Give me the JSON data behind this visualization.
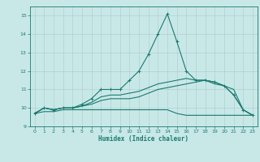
{
  "xlabel": "Humidex (Indice chaleur)",
  "x": [
    0,
    1,
    2,
    3,
    4,
    5,
    6,
    7,
    8,
    9,
    10,
    11,
    12,
    13,
    14,
    15,
    16,
    17,
    18,
    19,
    20,
    21,
    22,
    23
  ],
  "line1": [
    9.7,
    10.0,
    9.9,
    10.0,
    10.0,
    10.2,
    10.5,
    11.0,
    11.0,
    11.0,
    11.5,
    12.0,
    12.9,
    14.0,
    15.1,
    13.6,
    12.0,
    11.5,
    11.5,
    11.4,
    11.2,
    10.7,
    9.9,
    9.6
  ],
  "line2": [
    9.7,
    10.0,
    9.9,
    10.0,
    10.0,
    10.1,
    10.2,
    10.4,
    10.5,
    10.5,
    10.5,
    10.6,
    10.8,
    11.0,
    11.1,
    11.2,
    11.3,
    11.4,
    11.5,
    11.3,
    11.2,
    11.0,
    9.9,
    9.6
  ],
  "line3": [
    9.7,
    9.8,
    9.8,
    9.9,
    9.9,
    9.9,
    9.9,
    9.9,
    9.9,
    9.9,
    9.9,
    9.9,
    9.9,
    9.9,
    9.9,
    9.7,
    9.6,
    9.6,
    9.6,
    9.6,
    9.6,
    9.6,
    9.6,
    9.6
  ],
  "line4": [
    9.7,
    10.0,
    9.9,
    10.0,
    10.0,
    10.1,
    10.3,
    10.6,
    10.7,
    10.7,
    10.8,
    10.9,
    11.1,
    11.3,
    11.4,
    11.5,
    11.6,
    11.5,
    11.5,
    11.4,
    11.2,
    10.7,
    9.9,
    9.6
  ],
  "line_color": "#1a7a6e",
  "bg_color": "#c8e8e8",
  "grid_color": "#b0c8c8",
  "ylim": [
    9,
    15.5
  ],
  "xlim": [
    -0.5,
    23.5
  ],
  "yticks": [
    9,
    10,
    11,
    12,
    13,
    14,
    15
  ],
  "xticks": [
    0,
    1,
    2,
    3,
    4,
    5,
    6,
    7,
    8,
    9,
    10,
    11,
    12,
    13,
    14,
    15,
    16,
    17,
    18,
    19,
    20,
    21,
    22,
    23
  ]
}
